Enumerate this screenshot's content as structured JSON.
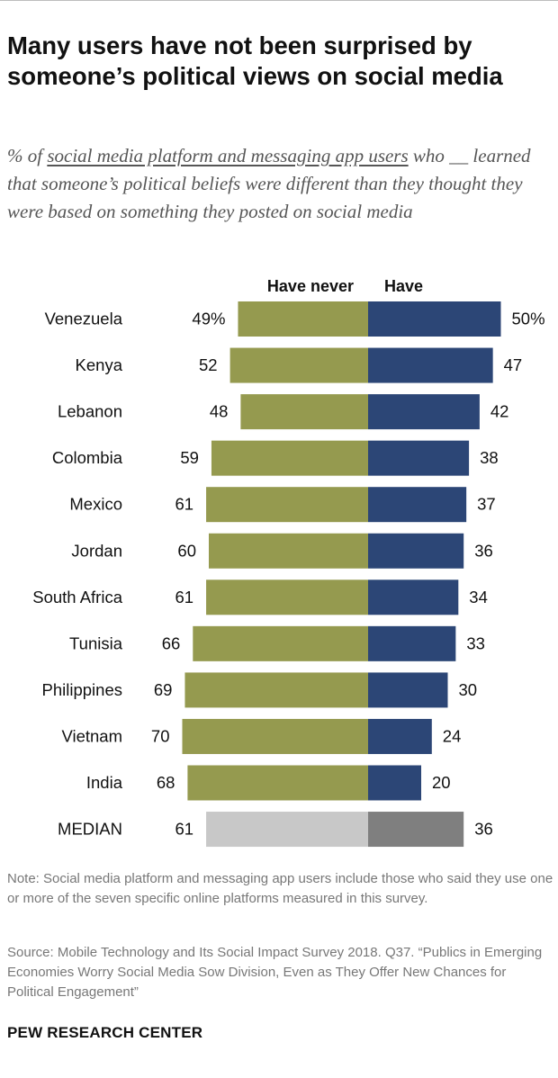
{
  "title": "Many users have not been surprised by someone’s political views on social media",
  "subtitle": {
    "prefix": "% of ",
    "underlined": "social media platform and messaging app users",
    "suffix": " who __ learned that someone’s political beliefs were different than they thought they were based on something they posted on social media"
  },
  "note": "Note: Social media platform and messaging app users include those who said they use one or more of the seven specific online platforms measured in this survey.",
  "source": "Source: Mobile Technology and Its Social Impact Survey 2018. Q37. “Publics in Emerging Economies Worry Social Media Sow Division, Even as They Offer New Chances for Political Engagement”",
  "footer": "PEW RESEARCH CENTER",
  "colors": {
    "have_never": "#959a4f",
    "have": "#2c4676",
    "median_have_never": "#c8c8c8",
    "median_have": "#7f7f7f"
  },
  "chart_data": {
    "type": "bar",
    "orientation": "horizontal-diverging",
    "categories": [
      "Venezuela",
      "Kenya",
      "Lebanon",
      "Colombia",
      "Mexico",
      "Jordan",
      "South Africa",
      "Tunisia",
      "Philippines",
      "Vietnam",
      "India",
      "MEDIAN"
    ],
    "series": [
      {
        "name": "Have never",
        "values": [
          49,
          52,
          48,
          59,
          61,
          60,
          61,
          66,
          69,
          70,
          68,
          61
        ],
        "labels": [
          "49%",
          "52",
          "48",
          "59",
          "61",
          "60",
          "61",
          "66",
          "69",
          "70",
          "68",
          "61"
        ]
      },
      {
        "name": "Have",
        "values": [
          50,
          47,
          42,
          38,
          37,
          36,
          34,
          33,
          30,
          24,
          20,
          36
        ],
        "labels": [
          "50%",
          "47",
          "42",
          "38",
          "37",
          "36",
          "34",
          "33",
          "30",
          "24",
          "20",
          "36"
        ]
      }
    ],
    "highlight_category": "MEDIAN",
    "legend": "top",
    "grid": false
  }
}
